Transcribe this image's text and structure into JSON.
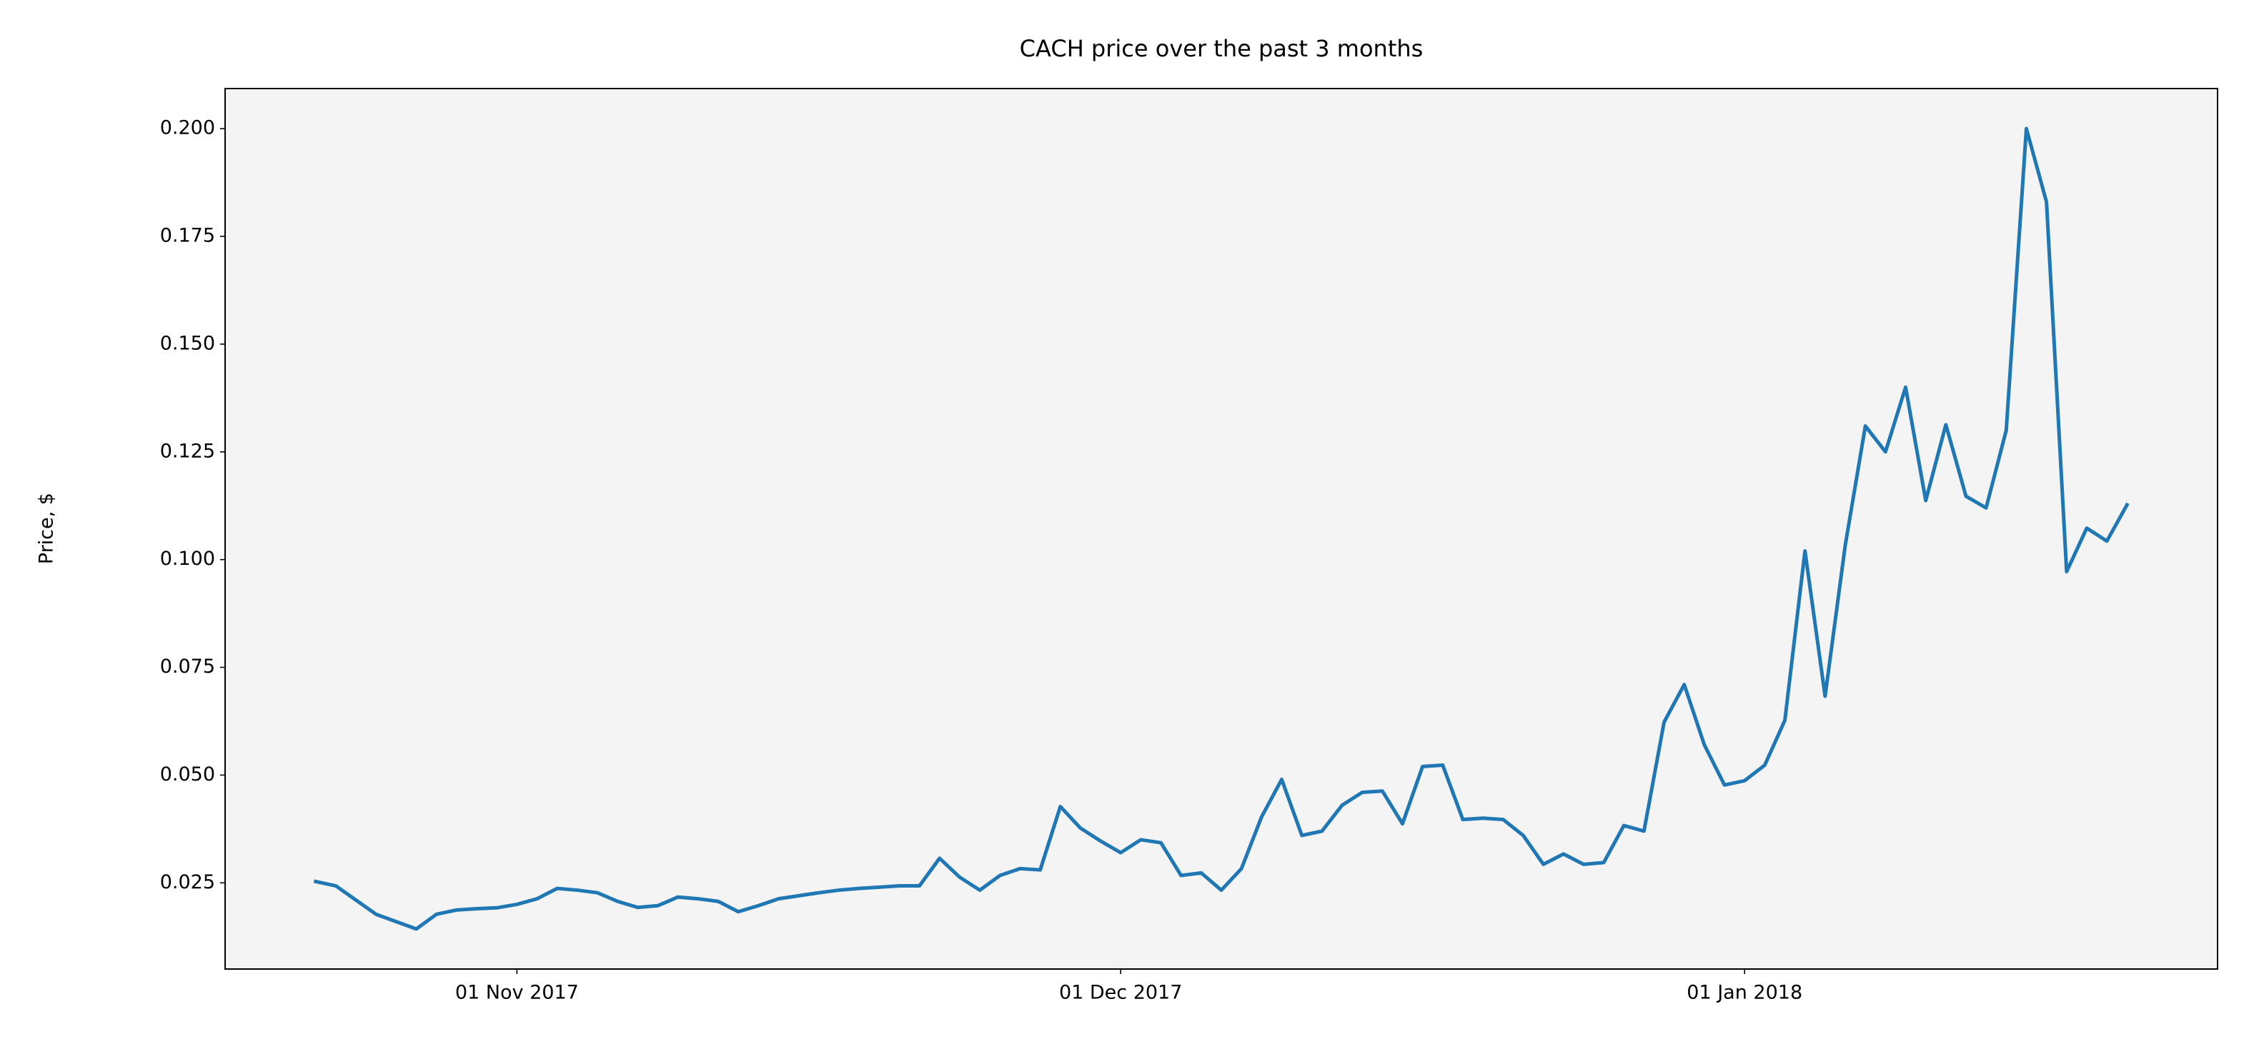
{
  "chart_data": {
    "type": "line",
    "title": "CACH price over the past 3 months",
    "ylabel": "Price, $",
    "color": "#1f77b4",
    "x": [
      "2017-10-22",
      "2017-10-23",
      "2017-10-24",
      "2017-10-25",
      "2017-10-26",
      "2017-10-27",
      "2017-10-28",
      "2017-10-29",
      "2017-10-30",
      "2017-10-31",
      "2017-11-01",
      "2017-11-02",
      "2017-11-03",
      "2017-11-04",
      "2017-11-05",
      "2017-11-06",
      "2017-11-07",
      "2017-11-08",
      "2017-11-09",
      "2017-11-10",
      "2017-11-11",
      "2017-11-12",
      "2017-11-13",
      "2017-11-14",
      "2017-11-15",
      "2017-11-16",
      "2017-11-17",
      "2017-11-18",
      "2017-11-19",
      "2017-11-20",
      "2017-11-21",
      "2017-11-22",
      "2017-11-23",
      "2017-11-24",
      "2017-11-25",
      "2017-11-26",
      "2017-11-27",
      "2017-11-28",
      "2017-11-29",
      "2017-11-30",
      "2017-12-01",
      "2017-12-02",
      "2017-12-03",
      "2017-12-04",
      "2017-12-05",
      "2017-12-06",
      "2017-12-07",
      "2017-12-08",
      "2017-12-09",
      "2017-12-10",
      "2017-12-11",
      "2017-12-12",
      "2017-12-13",
      "2017-12-14",
      "2017-12-15",
      "2017-12-16",
      "2017-12-17",
      "2017-12-18",
      "2017-12-19",
      "2017-12-20",
      "2017-12-21",
      "2017-12-22",
      "2017-12-23",
      "2017-12-24",
      "2017-12-25",
      "2017-12-26",
      "2017-12-27",
      "2017-12-28",
      "2017-12-29",
      "2017-12-30",
      "2017-12-31",
      "2018-01-01",
      "2018-01-02",
      "2018-01-03",
      "2018-01-04",
      "2018-01-05",
      "2018-01-06",
      "2018-01-07",
      "2018-01-08",
      "2018-01-09",
      "2018-01-10",
      "2018-01-11",
      "2018-01-12",
      "2018-01-13",
      "2018-01-14",
      "2018-01-15",
      "2018-01-16",
      "2018-01-17",
      "2018-01-18",
      "2018-01-19",
      "2018-01-20"
    ],
    "values": [
      0.0253,
      0.0243,
      0.021,
      0.0177,
      0.016,
      0.0143,
      0.0177,
      0.0187,
      0.019,
      0.0192,
      0.02,
      0.0213,
      0.0237,
      0.0233,
      0.0227,
      0.0207,
      0.0193,
      0.0197,
      0.0217,
      0.0213,
      0.0207,
      0.0183,
      0.0197,
      0.0213,
      0.022,
      0.0227,
      0.0233,
      0.0237,
      0.024,
      0.0243,
      0.0243,
      0.0307,
      0.0263,
      0.0233,
      0.0267,
      0.0283,
      0.028,
      0.0427,
      0.0377,
      0.0347,
      0.032,
      0.035,
      0.0343,
      0.0267,
      0.0273,
      0.0233,
      0.0283,
      0.0403,
      0.049,
      0.036,
      0.037,
      0.043,
      0.046,
      0.0463,
      0.0387,
      0.052,
      0.0523,
      0.0397,
      0.04,
      0.0397,
      0.036,
      0.0293,
      0.0317,
      0.0293,
      0.0297,
      0.0383,
      0.037,
      0.0623,
      0.071,
      0.057,
      0.0477,
      0.0487,
      0.0523,
      0.0627,
      0.102,
      0.0683,
      0.1033,
      0.131,
      0.125,
      0.14,
      0.1137,
      0.1313,
      0.1147,
      0.112,
      0.13,
      0.2,
      0.183,
      0.0972,
      0.1073,
      0.1043,
      0.1127
    ],
    "xlim": [
      "2017-10-17T12:00",
      "2018-01-24T12:00"
    ],
    "xticks": [
      {
        "value": "2017-11-01",
        "label": "01 Nov 2017"
      },
      {
        "value": "2017-12-01",
        "label": "01 Dec 2017"
      },
      {
        "value": "2018-01-01",
        "label": "01 Jan 2018"
      }
    ],
    "ylim": [
      0.005,
      0.2093
    ],
    "yticks": [
      0.025,
      {
        "value": 0.05,
        "label": "0.050"
      },
      0.075,
      {
        "value": 0.1,
        "label": "0.100"
      },
      0.125,
      {
        "value": 0.15,
        "label": "0.150"
      },
      0.175,
      {
        "value": 0.2,
        "label": "0.200"
      }
    ],
    "grid": false
  }
}
